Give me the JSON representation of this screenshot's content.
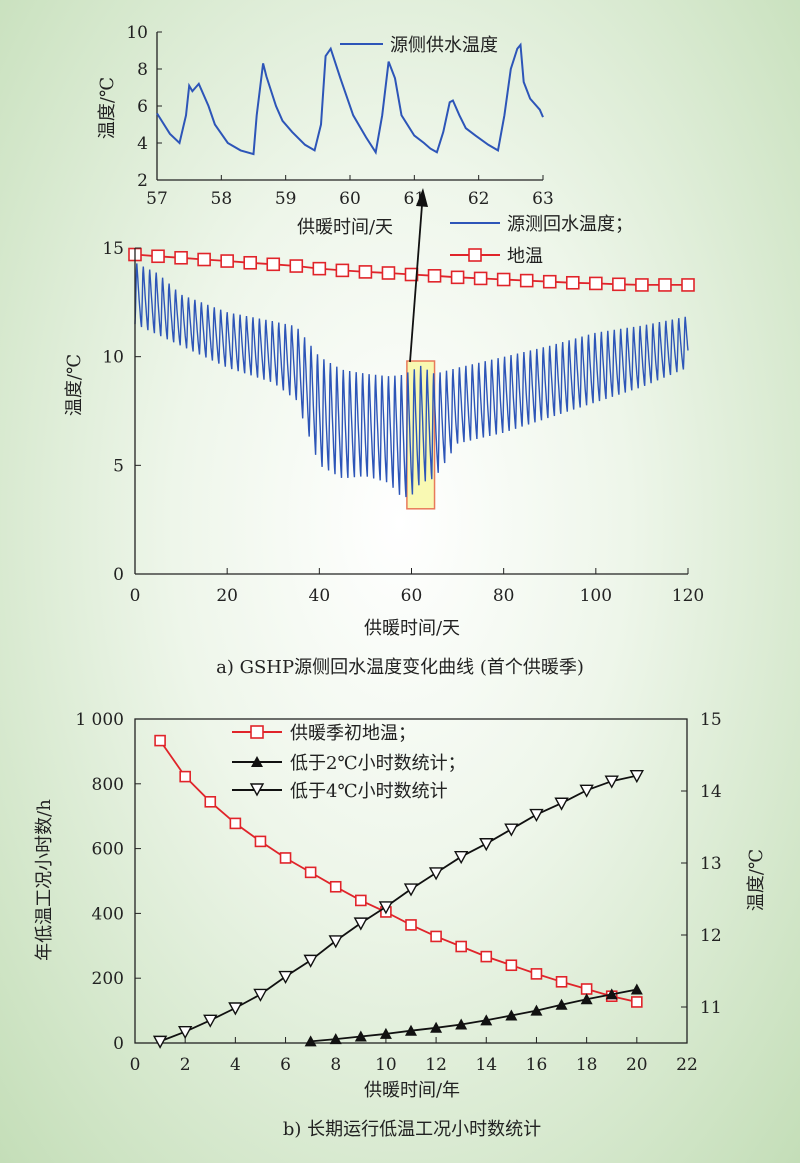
{
  "colors": {
    "blue": "#2d55b8",
    "red": "#e0242a",
    "black": "#111111",
    "highlight_fill": "#f7f7a0",
    "highlight_edge": "#e87a5a"
  },
  "chart_data": [
    {
      "id": "inset",
      "type": "line",
      "series": [
        {
          "name": "源侧供水温度",
          "color": "#2d55b8",
          "x": [
            57.0,
            57.2,
            57.35,
            57.45,
            57.5,
            57.55,
            57.6,
            57.65,
            57.8,
            57.9,
            58.1,
            58.3,
            58.5,
            58.55,
            58.65,
            58.7,
            58.85,
            58.95,
            59.1,
            59.3,
            59.45,
            59.55,
            59.62,
            59.7,
            59.85,
            60.05,
            60.25,
            60.4,
            60.5,
            60.6,
            60.7,
            60.8,
            61.0,
            61.15,
            61.25,
            61.35,
            61.45,
            61.55,
            61.6,
            61.7,
            61.8,
            61.95,
            62.15,
            62.3,
            62.4,
            62.5,
            62.6,
            62.65,
            62.7,
            62.8,
            62.95,
            63.0
          ],
          "y": [
            5.6,
            4.5,
            4.0,
            5.5,
            7.1,
            6.8,
            7.0,
            7.2,
            6.0,
            5.0,
            4.0,
            3.6,
            3.4,
            5.5,
            8.3,
            7.6,
            6.0,
            5.2,
            4.6,
            3.9,
            3.6,
            5.0,
            8.7,
            9.1,
            7.5,
            5.5,
            4.3,
            3.5,
            5.5,
            8.4,
            7.5,
            5.5,
            4.4,
            4.0,
            3.7,
            3.5,
            4.6,
            6.2,
            6.3,
            5.5,
            4.8,
            4.4,
            3.9,
            3.6,
            5.5,
            8.0,
            9.1,
            9.3,
            7.3,
            6.4,
            5.8,
            5.4
          ]
        }
      ],
      "xlim": [
        57,
        63
      ],
      "ylim": [
        2,
        10
      ],
      "xticks": [
        57,
        58,
        59,
        60,
        61,
        62,
        63
      ],
      "yticks": [
        2,
        4,
        6,
        8,
        10
      ],
      "xlabel": "供暖时间/天",
      "ylabel": "温度/℃"
    },
    {
      "id": "main",
      "type": "line",
      "title": "a) GSHP源侧回水温度变化曲线 (首个供暖季)",
      "series": [
        {
          "name": "源测回水温度；",
          "color": "#2d55b8",
          "envelope": {
            "x": [
              0,
              5,
              10,
              20,
              30,
              35,
              40,
              45,
              50,
              55,
              58,
              60,
              62,
              65,
              70,
              80,
              90,
              100,
              110,
              120
            ],
            "upper": [
              14.5,
              14,
              13,
              12.2,
              11.8,
              11.6,
              10.3,
              9.7,
              9.5,
              9.4,
              9.5,
              9.7,
              9.9,
              9.5,
              9.7,
              10.2,
              10.7,
              11.3,
              11.6,
              12.0
            ],
            "lower": [
              11.5,
              11,
              10.5,
              9.5,
              8.8,
              8.0,
              5.0,
              4.4,
              4.5,
              4.2,
              3.5,
              3.6,
              4.2,
              4.4,
              6.0,
              6.5,
              7.2,
              7.9,
              8.6,
              9.5
            ]
          },
          "cycle_days": 1.4
        },
        {
          "name": "地温",
          "color": "#e0242a",
          "marker": "square",
          "x": [
            0,
            5,
            10,
            15,
            20,
            25,
            30,
            35,
            40,
            45,
            50,
            55,
            60,
            65,
            70,
            75,
            80,
            85,
            90,
            95,
            100,
            105,
            110,
            115,
            120
          ],
          "y": [
            14.7,
            14.62,
            14.55,
            14.47,
            14.4,
            14.32,
            14.25,
            14.17,
            14.05,
            13.97,
            13.9,
            13.85,
            13.78,
            13.72,
            13.65,
            13.6,
            13.55,
            13.5,
            13.45,
            13.4,
            13.37,
            13.33,
            13.3,
            13.3,
            13.3
          ]
        }
      ],
      "xlim": [
        0,
        120
      ],
      "ylim": [
        0,
        15
      ],
      "xticks": [
        0,
        20,
        40,
        60,
        80,
        100,
        120
      ],
      "yticks": [
        0,
        5,
        10,
        15
      ],
      "xlabel": "供暖时间/天",
      "ylabel": "温度/℃",
      "highlight_x": [
        59,
        65
      ],
      "highlight_y": [
        3.0,
        9.8
      ]
    },
    {
      "id": "bottom",
      "type": "line",
      "title": "b) 长期运行低温工况小时数统计",
      "series": [
        {
          "name": "供暖季初地温；",
          "axis": "right",
          "color": "#e0242a",
          "marker": "square",
          "x": [
            1,
            2,
            3,
            4,
            5,
            6,
            7,
            8,
            9,
            10,
            11,
            12,
            13,
            14,
            15,
            16,
            17,
            18,
            19,
            20
          ],
          "y": [
            14.7,
            14.2,
            13.85,
            13.55,
            13.3,
            13.07,
            12.87,
            12.67,
            12.48,
            12.32,
            12.14,
            11.98,
            11.84,
            11.7,
            11.58,
            11.46,
            11.35,
            11.25,
            11.15,
            11.07
          ]
        },
        {
          "name": "低于2℃小时数统计；",
          "axis": "left",
          "color": "#111111",
          "marker": "triangle-up",
          "x": [
            7,
            8,
            9,
            10,
            11,
            12,
            13,
            14,
            15,
            16,
            17,
            18,
            19,
            20
          ],
          "y": [
            5,
            12,
            20,
            28,
            38,
            47,
            57,
            70,
            85,
            100,
            118,
            135,
            150,
            165
          ]
        },
        {
          "name": "低于4℃小时数统计",
          "axis": "left",
          "color": "#111111",
          "marker": "triangle-down",
          "x": [
            1,
            2,
            3,
            4,
            5,
            6,
            7,
            8,
            9,
            10,
            11,
            12,
            13,
            14,
            15,
            16,
            17,
            18,
            19,
            20
          ],
          "y": [
            5,
            35,
            70,
            108,
            150,
            205,
            255,
            315,
            370,
            420,
            475,
            525,
            575,
            615,
            660,
            705,
            740,
            780,
            808,
            825
          ]
        }
      ],
      "xlim": [
        0,
        22
      ],
      "ylim_left": [
        0,
        1000
      ],
      "ylim_right": [
        10.5,
        15
      ],
      "xticks": [
        0,
        2,
        4,
        6,
        8,
        10,
        12,
        14,
        16,
        18,
        20,
        22
      ],
      "yticks_left": [
        0,
        200,
        400,
        600,
        800,
        1000
      ],
      "yticks_left_labels": [
        "0",
        "200",
        "400",
        "600",
        "800",
        "1 000"
      ],
      "yticks_right": [
        11,
        12,
        13,
        14,
        15
      ],
      "xlabel": "供暖时间/年",
      "ylabel_left": "年低温工况小时数/h",
      "ylabel_right": "温度/℃"
    }
  ]
}
